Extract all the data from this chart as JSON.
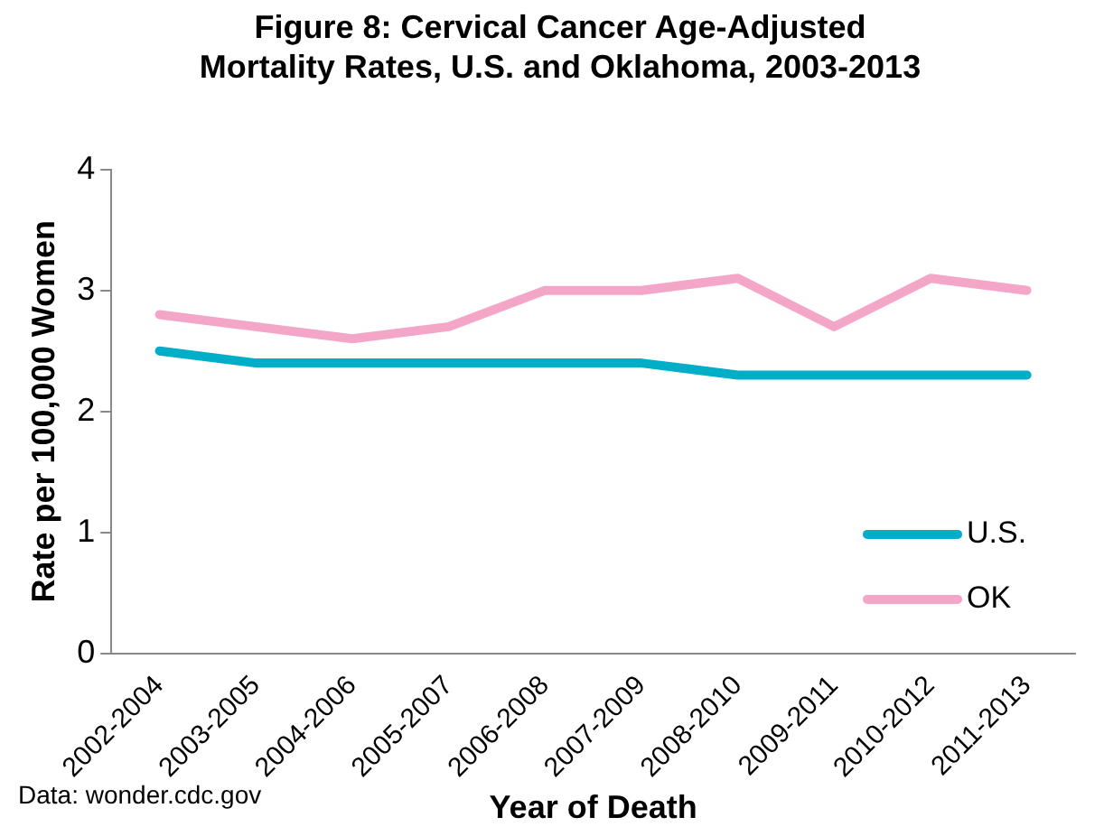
{
  "chart_data": {
    "type": "line",
    "title": "Figure 8: Cervical Cancer Age-Adjusted Mortality Rates, U.S. and Oklahoma, 2003-2013",
    "xlabel": "Year of Death",
    "ylabel": "Rate per 100,000 Women",
    "annotations": [
      "Data: wonder.cdc.gov"
    ],
    "categories": [
      "2002-2004",
      "2003-2005",
      "2004-2006",
      "2005-2007",
      "2006-2008",
      "2007-2009",
      "2008-2010",
      "2009-2011",
      "2010-2012",
      "2011-2013"
    ],
    "series": [
      {
        "name": "U.S.",
        "color": "#00aec7",
        "values": [
          2.5,
          2.4,
          2.4,
          2.4,
          2.4,
          2.4,
          2.3,
          2.3,
          2.3,
          2.3
        ]
      },
      {
        "name": "OK",
        "color": "#f4a6c8",
        "values": [
          2.8,
          2.7,
          2.6,
          2.7,
          3.0,
          3.0,
          3.1,
          2.7,
          3.1,
          3.0
        ]
      }
    ],
    "ylim": [
      0,
      4
    ],
    "yticks": [
      0,
      1,
      2,
      3,
      4
    ],
    "grid": false,
    "legend": "bottom right",
    "marker": "none",
    "line_style": "solid"
  }
}
